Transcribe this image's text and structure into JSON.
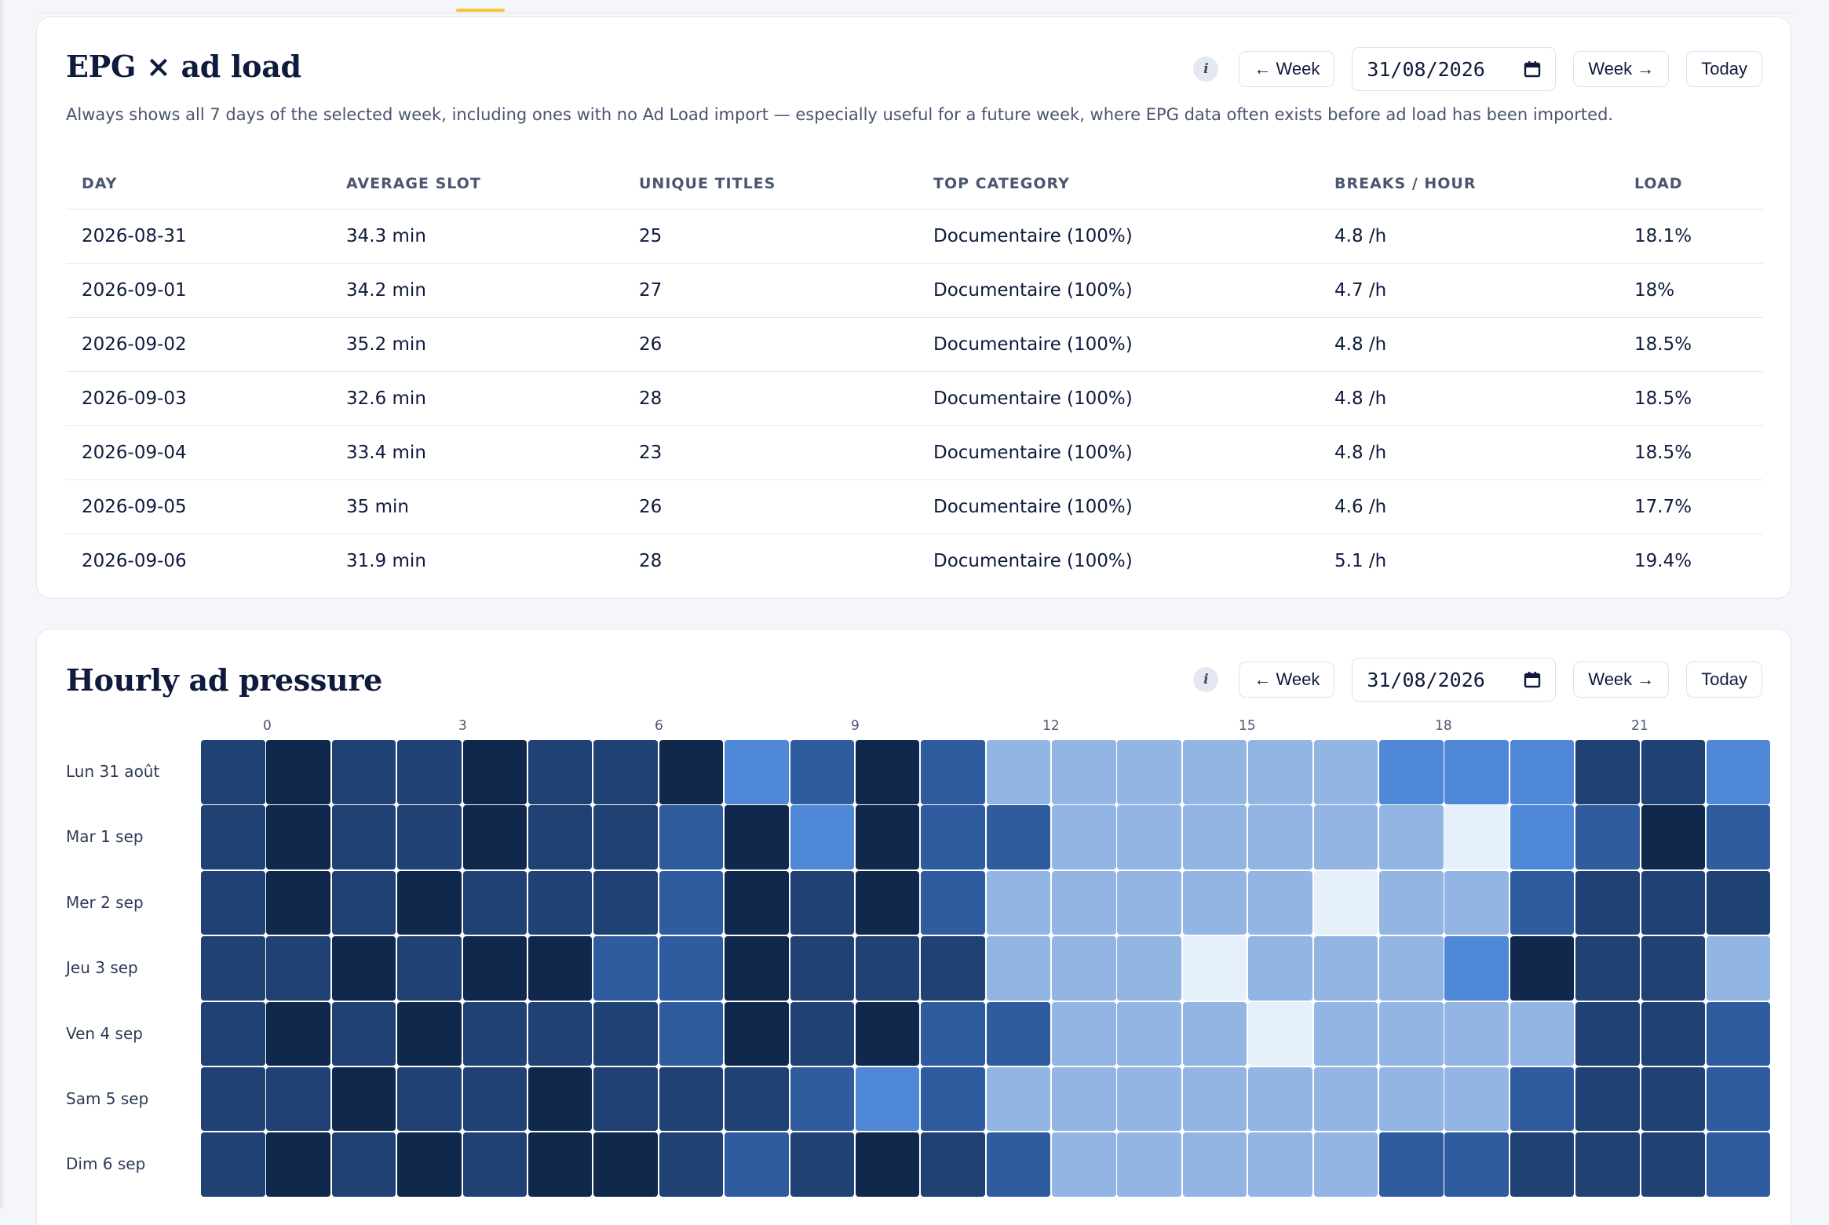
{
  "epg": {
    "title": "EPG × ad load",
    "description": "Always shows all 7 days of the selected week, including ones with no Ad Load import — especially useful for a future week, where EPG data often exists before ad load has been imported.",
    "info_label": "i",
    "prev_label": "← Week",
    "date_value": "31/08/2026",
    "next_label": "Week →",
    "today_label": "Today",
    "columns": [
      "DAY",
      "AVERAGE SLOT",
      "UNIQUE TITLES",
      "TOP CATEGORY",
      "BREAKS / HOUR",
      "LOAD"
    ],
    "rows": [
      [
        "2026-08-31",
        "34.3 min",
        "25",
        "Documentaire (100%)",
        "4.8 /h",
        "18.1%"
      ],
      [
        "2026-09-01",
        "34.2 min",
        "27",
        "Documentaire (100%)",
        "4.7 /h",
        "18%"
      ],
      [
        "2026-09-02",
        "35.2 min",
        "26",
        "Documentaire (100%)",
        "4.8 /h",
        "18.5%"
      ],
      [
        "2026-09-03",
        "32.6 min",
        "28",
        "Documentaire (100%)",
        "4.8 /h",
        "18.5%"
      ],
      [
        "2026-09-04",
        "33.4 min",
        "23",
        "Documentaire (100%)",
        "4.8 /h",
        "18.5%"
      ],
      [
        "2026-09-05",
        "35 min",
        "26",
        "Documentaire (100%)",
        "4.6 /h",
        "17.7%"
      ],
      [
        "2026-09-06",
        "31.9 min",
        "28",
        "Documentaire (100%)",
        "5.1 /h",
        "19.4%"
      ]
    ]
  },
  "pressure": {
    "title": "Hourly ad pressure",
    "info_label": "i",
    "prev_label": "← Week",
    "date_value": "31/08/2026",
    "next_label": "Week →",
    "today_label": "Today",
    "hour_labels": [
      "0",
      "3",
      "6",
      "9",
      "12",
      "15",
      "18",
      "21"
    ],
    "palette": {
      "0": "#e6f0fa",
      "1": "#93b5e4",
      "2": "#4f88d7",
      "3": "#2e5c9f",
      "4": "#1f4174",
      "5": "#10284c"
    },
    "days": [
      {
        "label": "Lun 31 août",
        "levels": [
          4,
          5,
          4,
          4,
          5,
          4,
          4,
          5,
          2,
          3,
          5,
          3,
          1,
          1,
          1,
          1,
          1,
          1,
          2,
          2,
          2,
          4,
          4,
          2
        ]
      },
      {
        "label": "Mar 1 sep",
        "levels": [
          4,
          5,
          4,
          4,
          5,
          4,
          4,
          3,
          5,
          2,
          5,
          3,
          3,
          1,
          1,
          1,
          1,
          1,
          1,
          0,
          2,
          3,
          5,
          3
        ]
      },
      {
        "label": "Mer 2 sep",
        "levels": [
          4,
          5,
          4,
          5,
          4,
          4,
          4,
          3,
          5,
          4,
          5,
          3,
          1,
          1,
          1,
          1,
          1,
          0,
          1,
          1,
          3,
          4,
          4,
          4
        ]
      },
      {
        "label": "Jeu 3 sep",
        "levels": [
          4,
          4,
          5,
          4,
          5,
          5,
          3,
          3,
          5,
          4,
          4,
          4,
          1,
          1,
          1,
          0,
          1,
          1,
          1,
          2,
          5,
          4,
          4,
          1
        ]
      },
      {
        "label": "Ven 4 sep",
        "levels": [
          4,
          5,
          4,
          5,
          4,
          4,
          4,
          3,
          5,
          4,
          5,
          3,
          3,
          1,
          1,
          1,
          0,
          1,
          1,
          1,
          1,
          4,
          4,
          3
        ]
      },
      {
        "label": "Sam 5 sep",
        "levels": [
          4,
          4,
          5,
          4,
          4,
          5,
          4,
          4,
          4,
          3,
          2,
          3,
          1,
          1,
          1,
          1,
          1,
          1,
          1,
          1,
          3,
          4,
          4,
          3
        ]
      },
      {
        "label": "Dim 6 sep",
        "levels": [
          4,
          5,
          4,
          5,
          4,
          5,
          5,
          4,
          3,
          4,
          5,
          4,
          3,
          1,
          1,
          1,
          1,
          1,
          3,
          3,
          4,
          4,
          4,
          3
        ]
      }
    ]
  }
}
